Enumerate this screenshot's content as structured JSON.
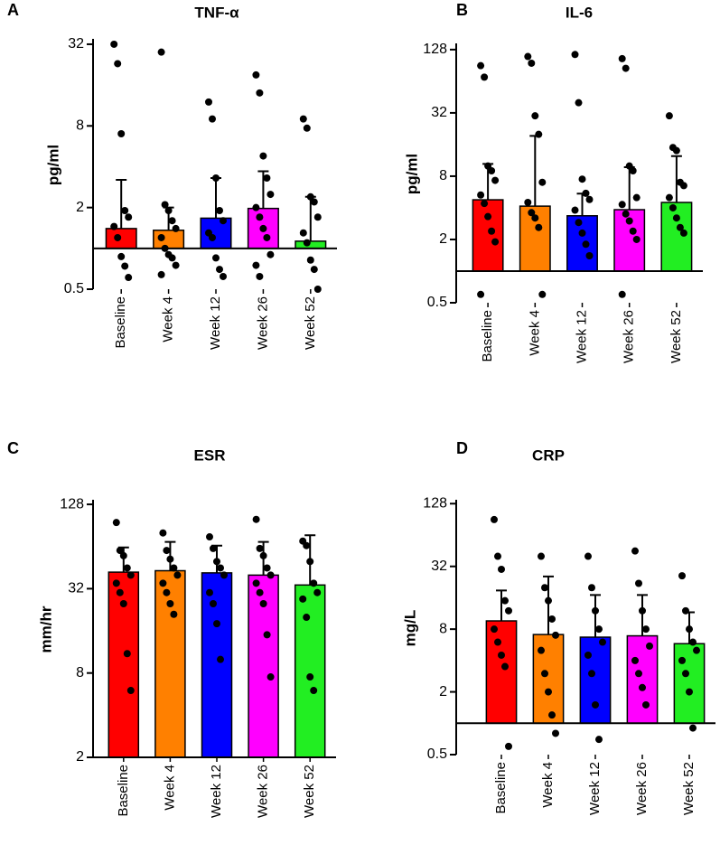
{
  "chart_data": [
    {
      "type": "bar",
      "panel": "A",
      "title": "TNF-α",
      "y_label": "pg/ml",
      "log_scale": true,
      "log_base": 2,
      "categories": [
        "Baseline",
        "Week 4",
        "Week 12",
        "Week 26",
        "Week 52"
      ],
      "colors": [
        "#ff0000",
        "#ff8000",
        "#0000ff",
        "#ff00ff",
        "#22ee22"
      ],
      "values": [
        1.4,
        1.36,
        1.67,
        1.97,
        1.13
      ],
      "errors": [
        1.8,
        0.64,
        1.63,
        1.73,
        1.27
      ],
      "points": [
        [
          32,
          23,
          7,
          1.9,
          1.7,
          1.45,
          1.2,
          0.87,
          0.74,
          0.61
        ],
        [
          28,
          2.1,
          1.9,
          1.6,
          1.4,
          1.2,
          1.0,
          0.9,
          0.85,
          0.75,
          0.64
        ],
        [
          12,
          9,
          3.3,
          1.9,
          1.6,
          1.3,
          1.2,
          0.85,
          0.7,
          0.62
        ],
        [
          19,
          14,
          4.8,
          3.3,
          2.5,
          2.0,
          1.7,
          1.4,
          1.2,
          0.9,
          0.75,
          0.62
        ],
        [
          9,
          7.7,
          2.4,
          2.2,
          1.7,
          1.3,
          1.1,
          0.82,
          0.7,
          0.5
        ]
      ],
      "reference_line": 1,
      "ylim": [
        0.5,
        34
      ],
      "yticks": [
        0.5,
        2,
        8,
        32
      ]
    },
    {
      "type": "bar",
      "panel": "B",
      "title": "IL-6",
      "y_label": "pg/ml",
      "log_scale": true,
      "log_base": 2,
      "categories": [
        "Baseline",
        "Week 4",
        "Week 12",
        "Week 26",
        "Week 52"
      ],
      "colors": [
        "#ff0000",
        "#ff8000",
        "#0000ff",
        "#ff00ff",
        "#22ee22"
      ],
      "values": [
        4.77,
        4.15,
        3.36,
        3.84,
        4.5
      ],
      "errors": [
        5.7,
        15.2,
        2.1,
        5.9,
        7.9
      ],
      "points": [
        [
          90,
          70,
          10,
          9,
          7.3,
          5.3,
          4.4,
          3.3,
          2.4,
          1.9,
          0.6
        ],
        [
          110,
          95,
          30,
          20,
          7,
          4.5,
          3.6,
          3.2,
          2.6,
          0.6
        ],
        [
          115,
          40,
          7.5,
          5.5,
          4.8,
          3.8,
          2.9,
          2.3,
          1.8,
          1.4
        ],
        [
          105,
          85,
          10,
          9,
          5,
          4.3,
          3.5,
          3,
          2.4,
          2,
          0.6
        ],
        [
          30,
          15,
          14,
          7,
          6.5,
          5,
          4,
          3.2,
          2.6,
          2.3
        ]
      ],
      "reference_line": 1,
      "ylim": [
        0.5,
        141
      ],
      "yticks": [
        0.5,
        2,
        8,
        32,
        128
      ]
    },
    {
      "type": "bar",
      "panel": "C",
      "title": "ESR",
      "y_label": "mm/hr",
      "log_scale": true,
      "log_base": 2,
      "categories": [
        "Baseline",
        "Week 4",
        "Week 12",
        "Week 26",
        "Week 52"
      ],
      "colors": [
        "#ff0000",
        "#ff8000",
        "#0000ff",
        "#ff00ff",
        "#22ee22"
      ],
      "values": [
        42,
        43,
        41.5,
        40,
        34
      ],
      "errors": [
        21,
        26,
        23.5,
        29,
        43
      ],
      "points": [
        [
          95,
          60,
          55,
          45,
          40,
          35,
          30,
          25,
          11,
          6
        ],
        [
          80,
          60,
          52,
          45,
          40,
          35,
          30,
          25,
          21
        ],
        [
          75,
          62,
          50,
          45,
          40,
          30,
          25,
          18,
          10
        ],
        [
          100,
          62,
          55,
          45,
          40,
          35,
          30,
          25,
          15,
          7.5
        ],
        [
          70,
          65,
          50,
          35,
          30,
          27,
          20,
          7.5,
          6
        ]
      ],
      "ylim": [
        2,
        134
      ],
      "yticks": [
        2,
        8,
        32,
        128
      ]
    },
    {
      "type": "bar",
      "panel": "D",
      "title": "CRP",
      "y_label": "mg/L",
      "log_scale": true,
      "log_base": 2,
      "categories": [
        "Baseline",
        "Week 4",
        "Week 12",
        "Week 26",
        "Week 52"
      ],
      "colors": [
        "#ff0000",
        "#ff8000",
        "#0000ff",
        "#ff00ff",
        "#22ee22"
      ],
      "values": [
        9.6,
        7.1,
        6.7,
        6.9,
        5.8
      ],
      "errors": [
        9.2,
        18.5,
        10.3,
        10.1,
        5.8
      ],
      "points": [
        [
          90,
          40,
          30,
          15,
          12,
          8,
          6,
          4.5,
          3.5,
          0.6
        ],
        [
          40,
          20,
          15,
          10,
          7,
          5,
          3,
          2,
          1.2,
          0.8
        ],
        [
          40,
          20,
          12,
          8,
          6,
          4.5,
          3,
          1.5,
          0.7
        ],
        [
          45,
          22,
          12,
          8,
          5.5,
          4,
          3,
          2.2,
          1.5
        ],
        [
          26,
          12,
          8,
          6,
          5,
          4,
          3,
          2,
          0.9
        ]
      ],
      "reference_line": 1,
      "ylim": [
        0.5,
        134
      ],
      "yticks": [
        0.5,
        2,
        8,
        32,
        128
      ]
    }
  ]
}
